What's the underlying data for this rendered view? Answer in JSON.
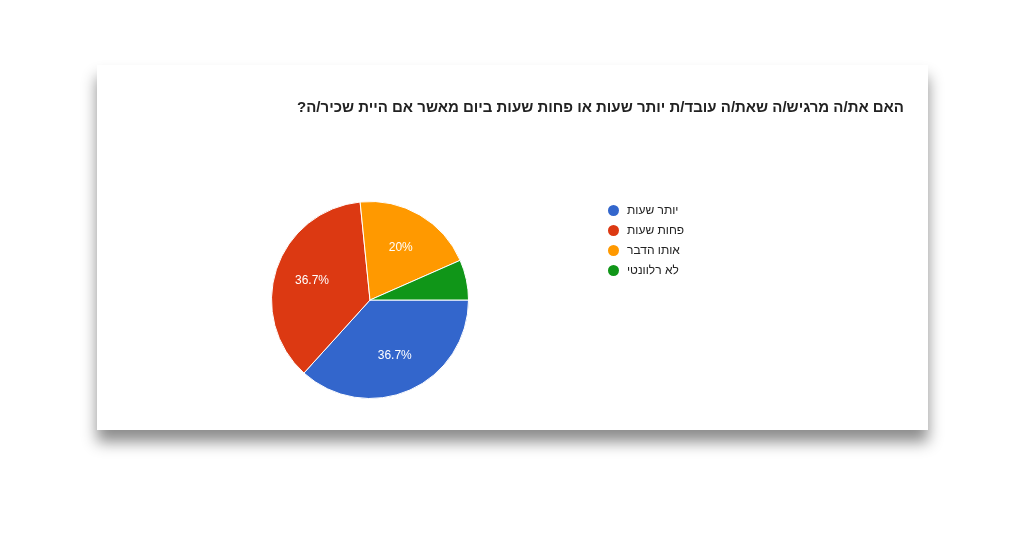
{
  "chart_data": {
    "type": "pie",
    "title": "האם את/ה מרגיש/ה שאת/ה עובד/ת יותר שעות או פחות שעות ביום מאשר אם היית שכיר/ה?",
    "categories": [
      "יותר שעות",
      "פחות שעות",
      "אותו הדבר",
      "לא רלוונטי"
    ],
    "values": [
      36.7,
      36.7,
      20,
      6.6
    ],
    "colors": [
      "#3366cc",
      "#dc3912",
      "#ff9900",
      "#109618"
    ],
    "value_labels": [
      "36.7%",
      "36.7%",
      "20%",
      null
    ],
    "legend": "right"
  }
}
